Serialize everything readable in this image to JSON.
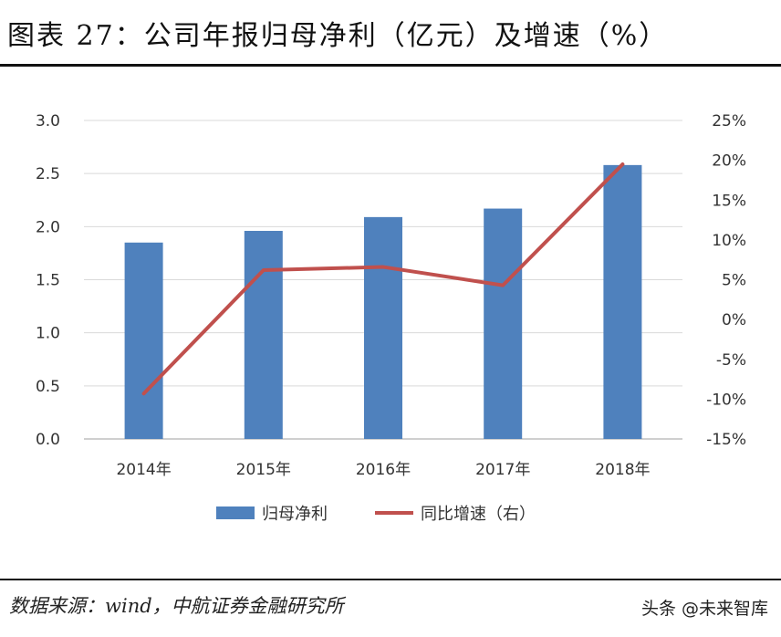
{
  "header": {
    "title": "图表 27：公司年报归母净利（亿元）及增速（%）"
  },
  "footer": {
    "source": "数据来源：wind，中航证券金融研究所",
    "watermark": "头条 @未来智库"
  },
  "colors": {
    "bar": "#4f81bd",
    "line": "#c0504d",
    "grid": "#d9d9d9",
    "axis": "#bfbfbf"
  },
  "chart_data": {
    "type": "bar",
    "categories": [
      "2014年",
      "2015年",
      "2016年",
      "2017年",
      "2018年"
    ],
    "series": [
      {
        "name": "归母净利",
        "type": "bar",
        "axis": "left",
        "values": [
          1.85,
          1.96,
          2.09,
          2.17,
          2.58
        ]
      },
      {
        "name": "同比增速（右）",
        "type": "line",
        "axis": "right",
        "values": [
          -9.3,
          6.2,
          6.6,
          4.3,
          19.5
        ]
      }
    ],
    "left_axis": {
      "ylim": [
        0,
        3.0
      ],
      "ticks": [
        "0.0",
        "0.5",
        "1.0",
        "1.5",
        "2.0",
        "2.5",
        "3.0"
      ]
    },
    "right_axis": {
      "ylim": [
        -15,
        25
      ],
      "ticks": [
        "-15%",
        "-10%",
        "-5%",
        "0%",
        "5%",
        "10%",
        "15%",
        "20%",
        "25%"
      ]
    },
    "grid": true,
    "legend_position": "bottom"
  }
}
